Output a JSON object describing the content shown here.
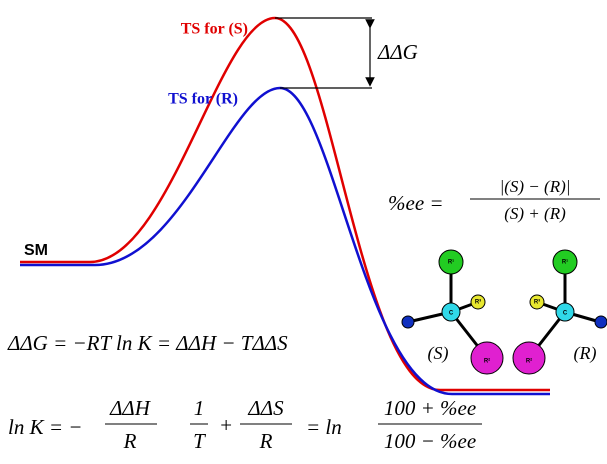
{
  "labels": {
    "ts_s": "TS for (S)",
    "ts_r": "TS for (R)",
    "ddg": "ΔΔG",
    "sm": "SM"
  },
  "equation_1": "ΔΔG = −RT ln K = ΔΔH − TΔΔS",
  "equation_2": {
    "lhs": "ln K = −",
    "frac1_num": "ΔΔH",
    "frac1_den": "R",
    "frac2_num": "1",
    "frac2_den": "T",
    "plus": "+",
    "frac3_num": "ΔΔS",
    "frac3_den": "R",
    "mid": "= ln",
    "frac4_num": "100 + %ee",
    "frac4_den": "100 − %ee"
  },
  "ee_formula": {
    "lhs": "%ee =",
    "numerator": "|(S) − (R)|",
    "denominator": "(S) + (R)"
  },
  "enantiomers": [
    {
      "label": "(S)"
    },
    {
      "label": "(R)"
    }
  ],
  "atoms": {
    "center": "C",
    "r1": "R¹",
    "r2": "R²",
    "r3": "R³"
  }
}
